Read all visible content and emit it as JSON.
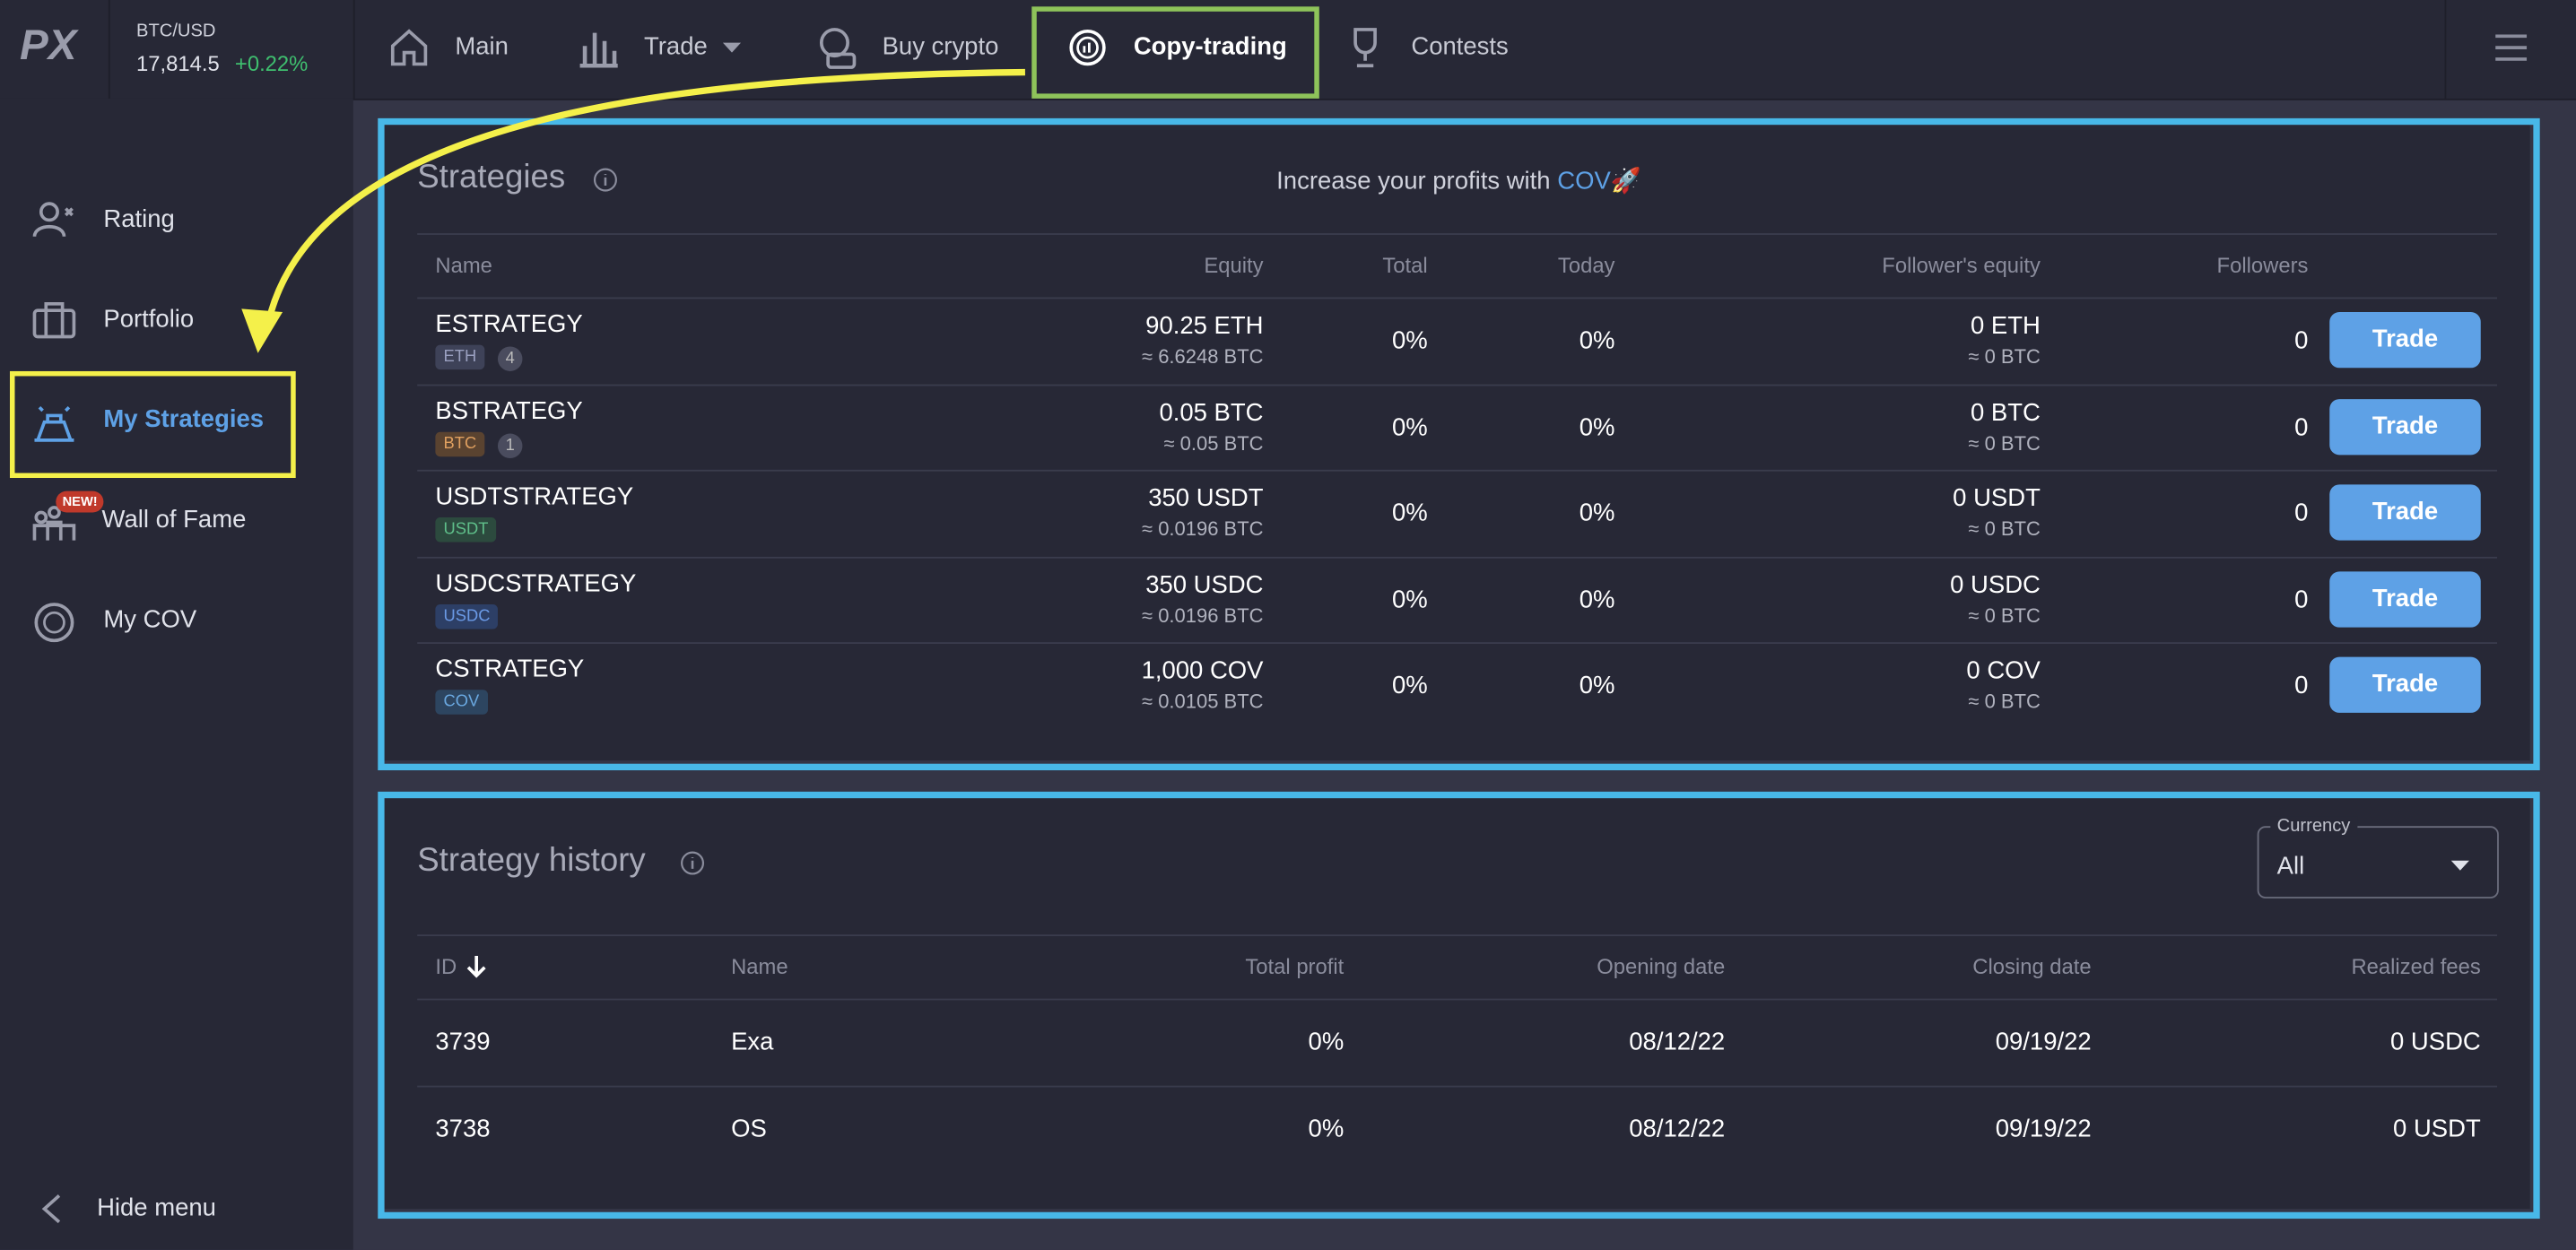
{
  "header": {
    "logo": "PX",
    "ticker": {
      "pair": "BTC/USD",
      "price": "17,814.5",
      "change": "+0.22%"
    },
    "nav": [
      "Main",
      "Trade",
      "Buy crypto",
      "Copy-trading",
      "Contests"
    ]
  },
  "sidebar": {
    "items": [
      "Rating",
      "Portfolio",
      "My Strategies",
      "Wall of Fame",
      "My COV"
    ],
    "badge": "NEW!",
    "hide": "Hide menu"
  },
  "strategies": {
    "title": "Strategies",
    "promo": "Increase your profits with",
    "promo_link": "COV",
    "promo_icon": "🚀",
    "button": "Trade",
    "columns": [
      "Name",
      "Equity",
      "Total",
      "Today",
      "Follower's equity",
      "Followers"
    ],
    "rows": [
      {
        "name": "ESTRATEGY",
        "currency": "ETH",
        "count": "4",
        "equity": "90.25 ETH",
        "equity_btc": "≈ 6.6248 BTC",
        "total": "0%",
        "today": "0%",
        "follower_equity": "0 ETH",
        "follower_equity_btc": "≈ 0 BTC",
        "followers": "0"
      },
      {
        "name": "BSTRATEGY",
        "currency": "BTC",
        "count": "1",
        "equity": "0.05 BTC",
        "equity_btc": "≈ 0.05 BTC",
        "total": "0%",
        "today": "0%",
        "follower_equity": "0 BTC",
        "follower_equity_btc": "≈ 0 BTC",
        "followers": "0"
      },
      {
        "name": "USDTSTRATEGY",
        "currency": "USDT",
        "equity": "350 USDT",
        "equity_btc": "≈ 0.0196 BTC",
        "total": "0%",
        "today": "0%",
        "follower_equity": "0 USDT",
        "follower_equity_btc": "≈ 0 BTC",
        "followers": "0"
      },
      {
        "name": "USDCSTRATEGY",
        "currency": "USDC",
        "equity": "350 USDC",
        "equity_btc": "≈ 0.0196 BTC",
        "total": "0%",
        "today": "0%",
        "follower_equity": "0 USDC",
        "follower_equity_btc": "≈ 0 BTC",
        "followers": "0"
      },
      {
        "name": "CSTRATEGY",
        "currency": "COV",
        "equity": "1,000 COV",
        "equity_btc": "≈ 0.0105 BTC",
        "total": "0%",
        "today": "0%",
        "follower_equity": "0 COV",
        "follower_equity_btc": "≈ 0 BTC",
        "followers": "0"
      }
    ]
  },
  "history": {
    "title": "Strategy history",
    "currency_label": "Currency",
    "currency_value": "All",
    "columns": [
      "ID",
      "Name",
      "Total profit",
      "Opening date",
      "Closing date",
      "Realized fees"
    ],
    "rows": [
      {
        "id": "3739",
        "name": "Exa",
        "total_profit": "0%",
        "opening_date": "08/12/22",
        "closing_date": "09/19/22",
        "realized_fees": "0 USDC"
      },
      {
        "id": "3738",
        "name": "OS",
        "total_profit": "0%",
        "opening_date": "08/12/22",
        "closing_date": "09/19/22",
        "realized_fees": "0 USDT"
      }
    ]
  }
}
